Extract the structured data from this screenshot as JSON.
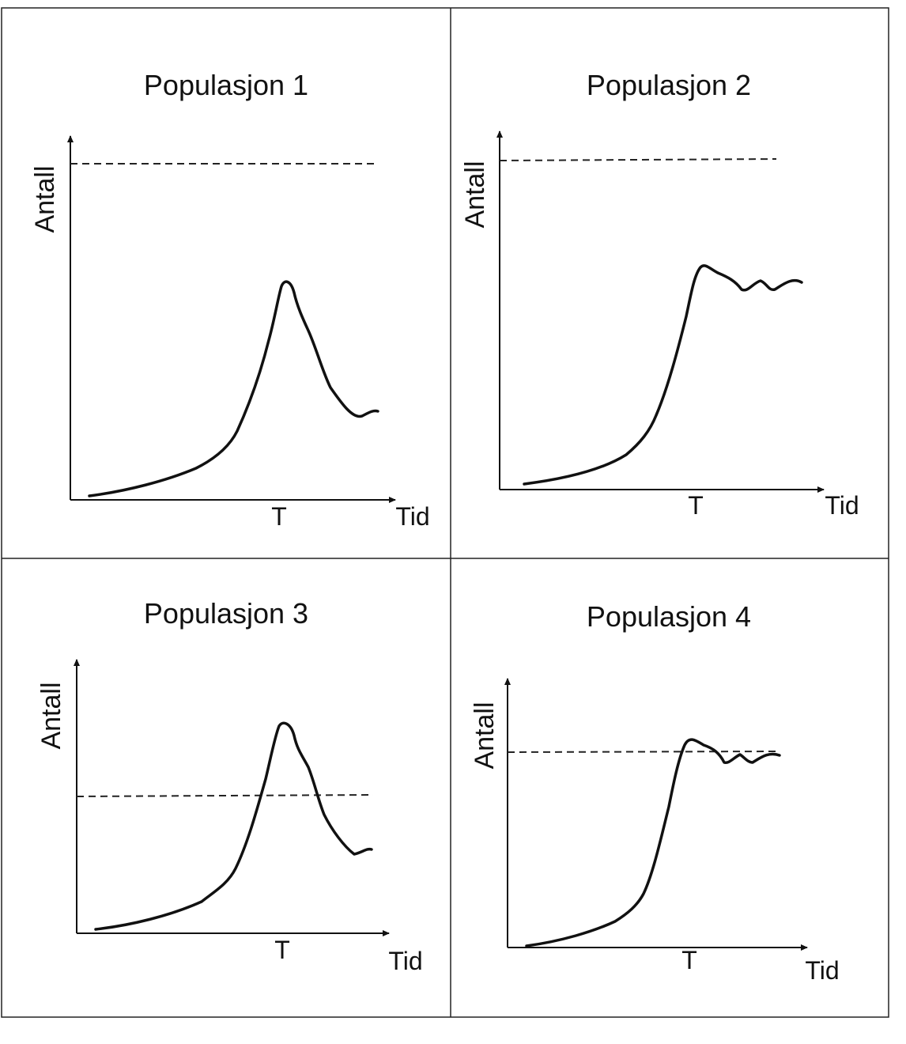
{
  "panels": [
    {
      "title": "Populasjon 1",
      "y_label": "Antall",
      "x_label": "Tid",
      "x_marker": "T",
      "limit_line": "above",
      "curve_shape": "peak-then-crash"
    },
    {
      "title": "Populasjon 2",
      "y_label": "Antall",
      "x_label": "Tid",
      "x_marker": "T",
      "limit_line": "above",
      "curve_shape": "rise-then-oscillate"
    },
    {
      "title": "Populasjon 3",
      "y_label": "Antall",
      "x_label": "Tid",
      "x_marker": "T",
      "limit_line": "crosses-curve",
      "curve_shape": "peak-then-crash"
    },
    {
      "title": "Populasjon 4",
      "y_label": "Antall",
      "x_label": "Tid",
      "x_marker": "T",
      "limit_line": "at-plateau",
      "curve_shape": "rise-then-oscillate"
    }
  ]
}
